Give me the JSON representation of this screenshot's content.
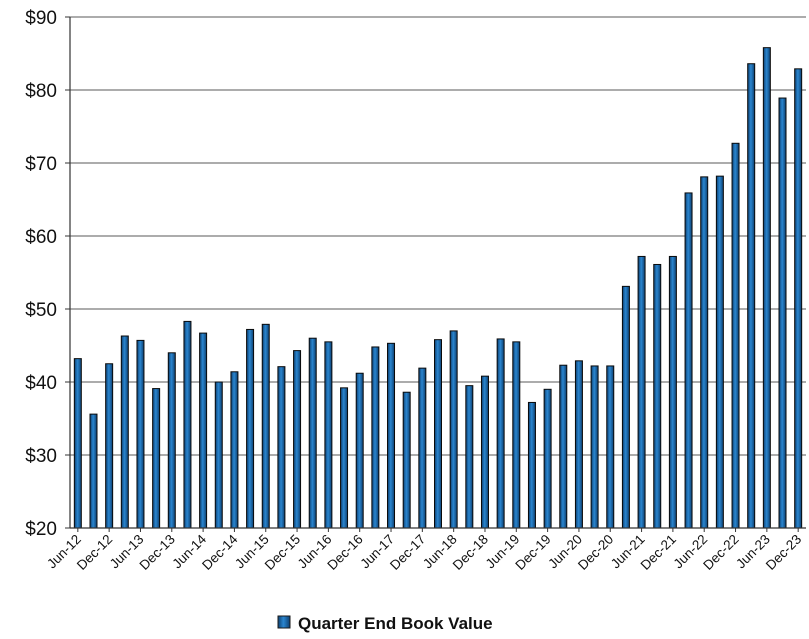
{
  "chart_data": {
    "type": "bar",
    "title": "",
    "xlabel": "",
    "ylabel": "",
    "ylim": [
      20,
      90
    ],
    "y_ticks": [
      "$20",
      "$30",
      "$40",
      "$50",
      "$60",
      "$70",
      "$80",
      "$90"
    ],
    "y_tick_values": [
      20,
      30,
      40,
      50,
      60,
      70,
      80,
      90
    ],
    "grid": "horizontal",
    "legend_position": "bottom",
    "categories": [
      "Jun-12",
      "Sep-12",
      "Dec-12",
      "Mar-13",
      "Jun-13",
      "Sep-13",
      "Dec-13",
      "Mar-14",
      "Jun-14",
      "Sep-14",
      "Dec-14",
      "Mar-15",
      "Jun-15",
      "Sep-15",
      "Dec-15",
      "Mar-16",
      "Jun-16",
      "Sep-16",
      "Dec-16",
      "Mar-17",
      "Jun-17",
      "Sep-17",
      "Dec-17",
      "Mar-18",
      "Jun-18",
      "Sep-18",
      "Dec-18",
      "Mar-19",
      "Jun-19",
      "Sep-19",
      "Dec-19",
      "Mar-20",
      "Jun-20",
      "Sep-20",
      "Dec-20",
      "Mar-21",
      "Jun-21",
      "Sep-21",
      "Dec-21",
      "Mar-22",
      "Jun-22",
      "Sep-22",
      "Dec-22",
      "Mar-23",
      "Jun-23",
      "Sep-23",
      "Dec-23"
    ],
    "x_tick_labels": [
      "Jun-12",
      "Dec-12",
      "Jun-13",
      "Dec-13",
      "Jun-14",
      "Dec-14",
      "Jun-15",
      "Dec-15",
      "Jun-16",
      "Dec-16",
      "Jun-17",
      "Dec-17",
      "Jun-18",
      "Dec-18",
      "Jun-19",
      "Dec-19",
      "Jun-20",
      "Dec-20",
      "Jun-21",
      "Dec-21",
      "Jun-22",
      "Dec-22",
      "Jun-23",
      "Dec-23"
    ],
    "series": [
      {
        "name": "Quarter End Book Value",
        "color": "#1a6fb5",
        "values": [
          43.2,
          35.6,
          42.5,
          46.3,
          45.7,
          39.1,
          44.0,
          48.3,
          46.7,
          40.0,
          41.4,
          47.2,
          47.9,
          42.1,
          44.3,
          46.0,
          45.5,
          39.2,
          41.2,
          44.8,
          45.3,
          38.6,
          41.9,
          45.8,
          47.0,
          39.5,
          40.8,
          45.9,
          45.5,
          37.2,
          39.0,
          42.3,
          42.9,
          42.2,
          42.2,
          53.1,
          57.2,
          56.1,
          57.2,
          65.9,
          68.1,
          68.2,
          72.7,
          83.6,
          85.8,
          78.9,
          82.9
        ]
      }
    ]
  }
}
